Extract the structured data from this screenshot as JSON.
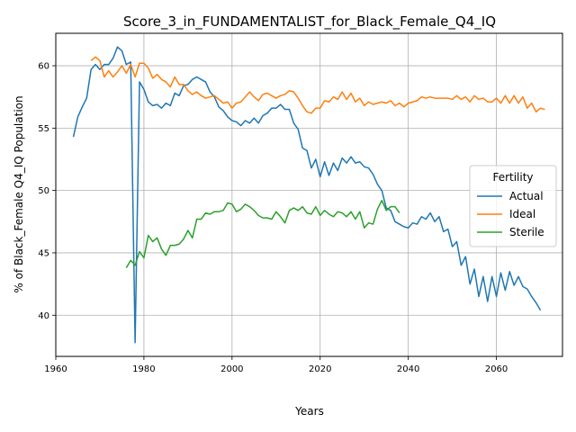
{
  "chart_data": {
    "type": "line",
    "title": "Score_3_in_FUNDAMENTALIST_for_Black_Female_Q4_IQ",
    "xlabel": "Years",
    "ylabel": "% of Black_Female Q4_IQ Population",
    "xlim": [
      1960,
      2075
    ],
    "ylim": [
      36.7,
      62.6
    ],
    "x_ticks": [
      1960,
      1980,
      2000,
      2020,
      2040,
      2060
    ],
    "y_ticks": [
      40,
      45,
      50,
      55,
      60
    ],
    "grid": true,
    "legend": {
      "title": "Fertility",
      "position": "center-right"
    },
    "series": [
      {
        "name": "Actual",
        "color": "#1f77b4",
        "x_start": 1964,
        "values": [
          54.3,
          55.9,
          56.7,
          57.4,
          59.7,
          60.1,
          59.7,
          60.1,
          60.1,
          60.6,
          61.5,
          61.2,
          60.1,
          60.3,
          37.8,
          58.7,
          58.1,
          57.1,
          56.8,
          56.9,
          56.6,
          57.0,
          56.8,
          57.8,
          57.6,
          58.4,
          58.5,
          58.9,
          59.1,
          58.9,
          58.7,
          57.9,
          57.5,
          56.7,
          56.4,
          55.9,
          55.6,
          55.5,
          55.2,
          55.6,
          55.4,
          55.8,
          55.4,
          56.0,
          56.2,
          56.6,
          56.6,
          56.9,
          56.5,
          56.5,
          55.4,
          54.9,
          53.4,
          53.2,
          51.8,
          52.5,
          51.1,
          52.3,
          51.2,
          52.2,
          51.6,
          52.6,
          52.2,
          52.7,
          52.2,
          52.3,
          51.9,
          51.8,
          51.3,
          50.5,
          50.0,
          48.6,
          48.4,
          47.5,
          47.3,
          47.1,
          47.0,
          47.4,
          47.3,
          47.9,
          47.7,
          48.2,
          47.5,
          47.9,
          46.7,
          46.9,
          45.5,
          45.9,
          44.0,
          44.7,
          42.5,
          43.7,
          41.5,
          43.1,
          41.1,
          43.1,
          41.5,
          43.4,
          42.0,
          43.5,
          42.4,
          43.1,
          42.3,
          42.1,
          41.5,
          41.0,
          40.4
        ]
      },
      {
        "name": "Ideal",
        "color": "#ff7f0e",
        "x_start": 1968,
        "values": [
          60.4,
          60.7,
          60.4,
          59.1,
          59.6,
          59.1,
          59.5,
          60.0,
          59.4,
          60.1,
          59.1,
          60.2,
          60.2,
          59.8,
          59.0,
          59.3,
          58.9,
          58.7,
          58.3,
          59.1,
          58.5,
          58.5,
          58.0,
          57.7,
          57.9,
          57.6,
          57.4,
          57.5,
          57.6,
          57.3,
          57.0,
          57.1,
          56.6,
          57.0,
          57.1,
          57.5,
          57.9,
          57.5,
          57.2,
          57.7,
          57.8,
          57.6,
          57.4,
          57.6,
          57.7,
          58.0,
          57.9,
          57.4,
          56.8,
          56.3,
          56.2,
          56.6,
          56.6,
          57.2,
          57.1,
          57.5,
          57.3,
          57.9,
          57.3,
          57.8,
          57.1,
          57.4,
          56.8,
          57.1,
          56.9,
          57.0,
          57.1,
          57.0,
          57.2,
          56.8,
          57.0,
          56.7,
          57.0,
          57.1,
          57.2,
          57.5,
          57.4,
          57.5,
          57.4,
          57.4,
          57.4,
          57.4,
          57.3,
          57.6,
          57.3,
          57.5,
          57.1,
          57.6,
          57.3,
          57.4,
          57.1,
          57.1,
          57.4,
          57.0,
          57.6,
          57.0,
          57.6,
          57.0,
          57.5,
          56.6,
          57.0,
          56.3,
          56.6,
          56.5
        ]
      },
      {
        "name": "Sterile",
        "color": "#2ca02c",
        "x_start": 1976,
        "values": [
          43.8,
          44.4,
          44.0,
          45.1,
          44.6,
          46.4,
          45.9,
          46.2,
          45.3,
          44.8,
          45.6,
          45.6,
          45.7,
          46.1,
          46.8,
          46.2,
          47.7,
          47.7,
          48.2,
          48.1,
          48.3,
          48.3,
          48.4,
          49.0,
          48.9,
          48.3,
          48.5,
          48.9,
          48.7,
          48.4,
          48.0,
          47.8,
          47.8,
          47.7,
          48.3,
          47.9,
          47.4,
          48.4,
          48.6,
          48.4,
          48.7,
          48.2,
          48.1,
          48.7,
          48.0,
          48.4,
          48.1,
          47.9,
          48.3,
          48.2,
          47.9,
          48.3,
          47.7,
          48.3,
          47.0,
          47.4,
          47.3,
          48.5,
          49.2,
          48.4,
          48.7,
          48.7,
          48.2
        ]
      }
    ]
  }
}
